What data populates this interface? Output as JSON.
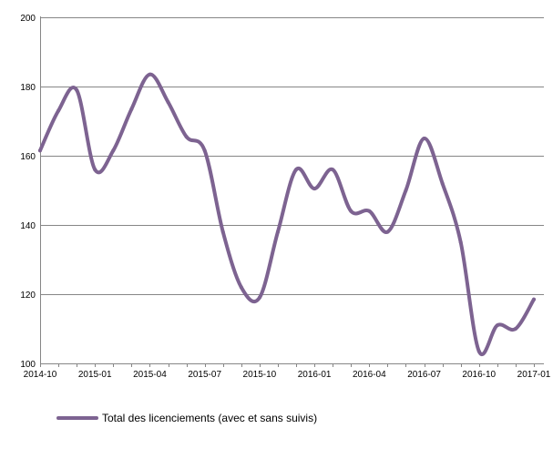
{
  "chart_data": {
    "type": "line",
    "title": "",
    "xlabel": "",
    "ylabel": "",
    "ylim": [
      100,
      200
    ],
    "y_ticks": [
      "100",
      "120",
      "140",
      "160",
      "180",
      "200"
    ],
    "x_ticks": [
      "2014-10",
      "2015-01",
      "2015-04",
      "2015-07",
      "2015-10",
      "2016-01",
      "2016-04",
      "2016-07",
      "2016-10",
      "2017-01"
    ],
    "grid": "horizontal",
    "legend_position": "bottom-left",
    "x": [
      "2014-10",
      "2014-11",
      "2014-12",
      "2015-01",
      "2015-02",
      "2015-03",
      "2015-04",
      "2015-05",
      "2015-06",
      "2015-07",
      "2015-08",
      "2015-09",
      "2015-10",
      "2015-11",
      "2015-12",
      "2016-01",
      "2016-02",
      "2016-03",
      "2016-04",
      "2016-05",
      "2016-06",
      "2016-07",
      "2016-08",
      "2016-09",
      "2016-10",
      "2016-11",
      "2016-12",
      "2017-01"
    ],
    "series": [
      {
        "name": "Total des licenciements (avec et sans suivis)",
        "color": "#7d6391",
        "values": [
          161.5,
          173,
          179,
          156,
          161.5,
          173.5,
          183.5,
          175.5,
          165.5,
          161.5,
          138,
          122,
          119,
          138,
          156,
          150.5,
          156,
          144,
          144,
          138,
          150,
          165,
          152,
          135,
          103.5,
          111,
          110,
          118.5
        ]
      }
    ]
  }
}
